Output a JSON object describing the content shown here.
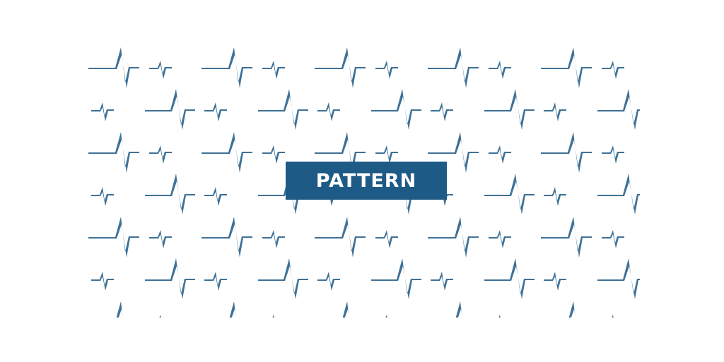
{
  "banner": {
    "label": "PATTERN"
  },
  "colors": {
    "pattern": "#3f7196",
    "label_background": "#1e5a86",
    "label_text": "#ffffff",
    "background": "#ffffff"
  },
  "pattern": {
    "motif_icon": "heartbeat-zigzag-icon"
  }
}
